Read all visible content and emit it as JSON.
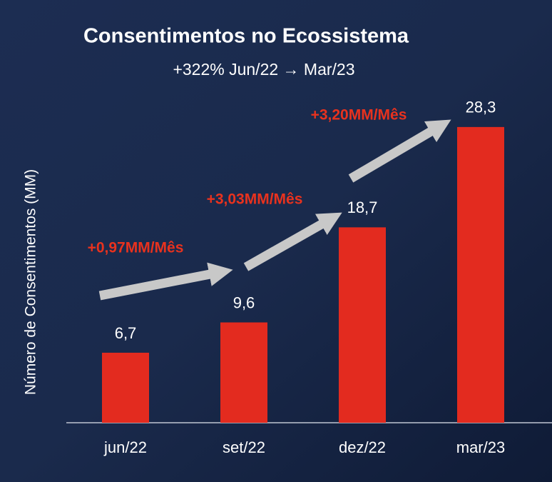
{
  "chart_data": {
    "type": "bar",
    "title": "Consentimentos no Ecossistema",
    "subtitle": "+322% Jun/22 → Mar/23",
    "y_label": "Número de Consentimentos (MM)",
    "categories": [
      "jun/22",
      "set/22",
      "dez/22",
      "mar/23"
    ],
    "values": [
      6.7,
      9.6,
      18.7,
      28.3
    ],
    "value_labels": [
      "6,7",
      "9,6",
      "18,7",
      "28,3"
    ],
    "color": "#e32b1f",
    "ylim": [
      0,
      30
    ],
    "annotations": [
      "+0,97MM/Mês",
      "+3,03MM/Mês",
      "+3,20MM/Mês"
    ]
  }
}
